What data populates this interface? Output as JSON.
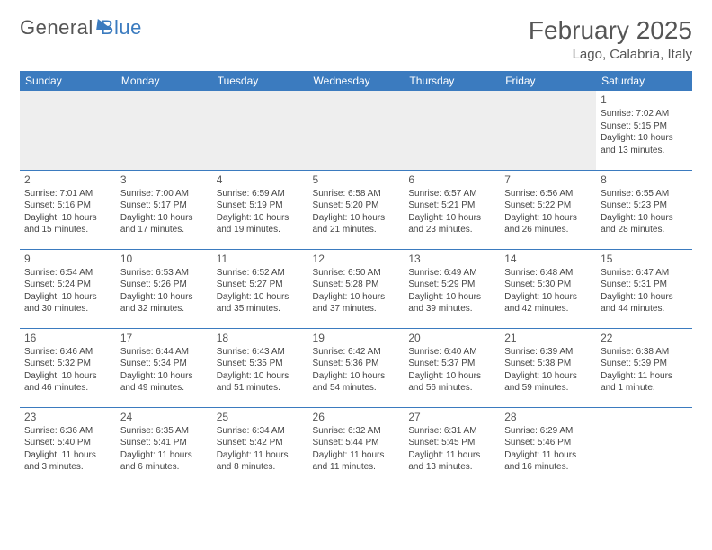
{
  "brand": {
    "part1": "General",
    "part2": "Blue"
  },
  "title": "February 2025",
  "subtitle": "Lago, Calabria, Italy",
  "weekdays": [
    "Sunday",
    "Monday",
    "Tuesday",
    "Wednesday",
    "Thursday",
    "Friday",
    "Saturday"
  ],
  "colors": {
    "header_bg": "#3b7bbf",
    "header_fg": "#ffffff",
    "rule": "#3b7bbf",
    "text": "#444444",
    "empty_row_bg": "#eeeeee"
  },
  "font": {
    "family": "Arial",
    "title_size": 28,
    "cell_size": 10,
    "header_size": 12
  },
  "grid": {
    "cols": 7,
    "rows": 5
  },
  "labels": {
    "sunrise": "Sunrise: ",
    "sunset": "Sunset: ",
    "daylight": "Daylight: "
  },
  "weeks": [
    [
      null,
      null,
      null,
      null,
      null,
      null,
      {
        "n": "1",
        "sunrise": "7:02 AM",
        "sunset": "5:15 PM",
        "daylight": "10 hours and 13 minutes."
      }
    ],
    [
      {
        "n": "2",
        "sunrise": "7:01 AM",
        "sunset": "5:16 PM",
        "daylight": "10 hours and 15 minutes."
      },
      {
        "n": "3",
        "sunrise": "7:00 AM",
        "sunset": "5:17 PM",
        "daylight": "10 hours and 17 minutes."
      },
      {
        "n": "4",
        "sunrise": "6:59 AM",
        "sunset": "5:19 PM",
        "daylight": "10 hours and 19 minutes."
      },
      {
        "n": "5",
        "sunrise": "6:58 AM",
        "sunset": "5:20 PM",
        "daylight": "10 hours and 21 minutes."
      },
      {
        "n": "6",
        "sunrise": "6:57 AM",
        "sunset": "5:21 PM",
        "daylight": "10 hours and 23 minutes."
      },
      {
        "n": "7",
        "sunrise": "6:56 AM",
        "sunset": "5:22 PM",
        "daylight": "10 hours and 26 minutes."
      },
      {
        "n": "8",
        "sunrise": "6:55 AM",
        "sunset": "5:23 PM",
        "daylight": "10 hours and 28 minutes."
      }
    ],
    [
      {
        "n": "9",
        "sunrise": "6:54 AM",
        "sunset": "5:24 PM",
        "daylight": "10 hours and 30 minutes."
      },
      {
        "n": "10",
        "sunrise": "6:53 AM",
        "sunset": "5:26 PM",
        "daylight": "10 hours and 32 minutes."
      },
      {
        "n": "11",
        "sunrise": "6:52 AM",
        "sunset": "5:27 PM",
        "daylight": "10 hours and 35 minutes."
      },
      {
        "n": "12",
        "sunrise": "6:50 AM",
        "sunset": "5:28 PM",
        "daylight": "10 hours and 37 minutes."
      },
      {
        "n": "13",
        "sunrise": "6:49 AM",
        "sunset": "5:29 PM",
        "daylight": "10 hours and 39 minutes."
      },
      {
        "n": "14",
        "sunrise": "6:48 AM",
        "sunset": "5:30 PM",
        "daylight": "10 hours and 42 minutes."
      },
      {
        "n": "15",
        "sunrise": "6:47 AM",
        "sunset": "5:31 PM",
        "daylight": "10 hours and 44 minutes."
      }
    ],
    [
      {
        "n": "16",
        "sunrise": "6:46 AM",
        "sunset": "5:32 PM",
        "daylight": "10 hours and 46 minutes."
      },
      {
        "n": "17",
        "sunrise": "6:44 AM",
        "sunset": "5:34 PM",
        "daylight": "10 hours and 49 minutes."
      },
      {
        "n": "18",
        "sunrise": "6:43 AM",
        "sunset": "5:35 PM",
        "daylight": "10 hours and 51 minutes."
      },
      {
        "n": "19",
        "sunrise": "6:42 AM",
        "sunset": "5:36 PM",
        "daylight": "10 hours and 54 minutes."
      },
      {
        "n": "20",
        "sunrise": "6:40 AM",
        "sunset": "5:37 PM",
        "daylight": "10 hours and 56 minutes."
      },
      {
        "n": "21",
        "sunrise": "6:39 AM",
        "sunset": "5:38 PM",
        "daylight": "10 hours and 59 minutes."
      },
      {
        "n": "22",
        "sunrise": "6:38 AM",
        "sunset": "5:39 PM",
        "daylight": "11 hours and 1 minute."
      }
    ],
    [
      {
        "n": "23",
        "sunrise": "6:36 AM",
        "sunset": "5:40 PM",
        "daylight": "11 hours and 3 minutes."
      },
      {
        "n": "24",
        "sunrise": "6:35 AM",
        "sunset": "5:41 PM",
        "daylight": "11 hours and 6 minutes."
      },
      {
        "n": "25",
        "sunrise": "6:34 AM",
        "sunset": "5:42 PM",
        "daylight": "11 hours and 8 minutes."
      },
      {
        "n": "26",
        "sunrise": "6:32 AM",
        "sunset": "5:44 PM",
        "daylight": "11 hours and 11 minutes."
      },
      {
        "n": "27",
        "sunrise": "6:31 AM",
        "sunset": "5:45 PM",
        "daylight": "11 hours and 13 minutes."
      },
      {
        "n": "28",
        "sunrise": "6:29 AM",
        "sunset": "5:46 PM",
        "daylight": "11 hours and 16 minutes."
      },
      null
    ]
  ]
}
